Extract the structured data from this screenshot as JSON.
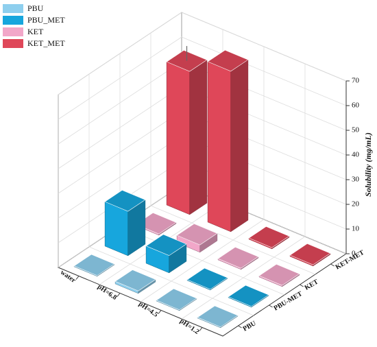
{
  "chart_data": {
    "type": "bar3d",
    "zlabel": "Solubility (mg/mL)",
    "categories": [
      "water",
      "pH=6.8",
      "pH=4.5",
      "pH=1.2"
    ],
    "depth_labels": [
      "PBU",
      "PBU-MET",
      "KET",
      "KET-MET"
    ],
    "series": [
      {
        "name": "PBU",
        "color": "#8ecfee",
        "values": [
          0.3,
          1,
          0.3,
          0.3
        ]
      },
      {
        "name": "PBU_MET",
        "color": "#17a6dd",
        "values": [
          18,
          7,
          0.3,
          0.3
        ]
      },
      {
        "name": "KET",
        "color": "#f2a7c9",
        "values": [
          0.5,
          3,
          0.5,
          0.5
        ]
      },
      {
        "name": "KET_MET",
        "color": "#df4759",
        "values": [
          58,
          65,
          0.5,
          0.5
        ],
        "errors": [
          6,
          null,
          null,
          null
        ]
      }
    ],
    "zlim": [
      0,
      70
    ],
    "zticks": [
      0,
      10,
      20,
      30,
      40,
      50,
      60,
      70
    ],
    "grid": true,
    "legend": "top-left"
  }
}
